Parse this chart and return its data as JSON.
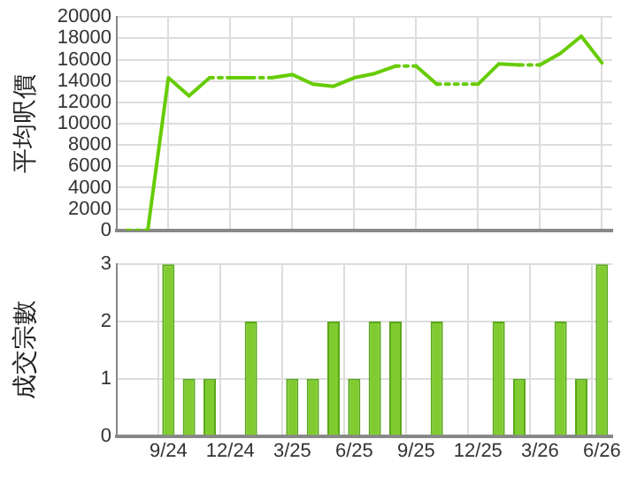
{
  "chart_data": [
    {
      "type": "line",
      "ylabel": "平均呎價",
      "categories": [
        null,
        null,
        null,
        null,
        null,
        null,
        null,
        null,
        null,
        null,
        null,
        null,
        null,
        null,
        null,
        null,
        null,
        null,
        null,
        null,
        null,
        null,
        null,
        null
      ],
      "series": [
        {
          "color": "#66cc00",
          "values": [
            0,
            0,
            14300,
            12600,
            14300,
            14300,
            14300,
            14300,
            14600,
            13700,
            13500,
            14300,
            14700,
            15400,
            15400,
            13700,
            13700,
            13700,
            15600,
            15500,
            15500,
            16600,
            18200,
            15700
          ]
        }
      ],
      "ylim": [
        0,
        20000
      ],
      "yticks": [
        0,
        2000,
        4000,
        6000,
        8000,
        10000,
        12000,
        14000,
        16000,
        18000,
        20000
      ],
      "grid": true,
      "marker": "none",
      "line_style": "solid",
      "tick_labels": "y"
    },
    {
      "type": "bar",
      "ylabel": "成交宗數",
      "categories": [
        null,
        null,
        "9/24",
        null,
        null,
        "12/24",
        null,
        null,
        "3/25",
        null,
        null,
        "6/25",
        null,
        null,
        "9/25",
        null,
        null,
        "12/25",
        null,
        null,
        "3/26",
        null,
        null,
        "6/26"
      ],
      "series": [
        {
          "color": "#80cc30",
          "values": [
            0,
            0,
            3,
            1,
            1,
            0,
            2,
            0,
            1,
            1,
            2,
            1,
            2,
            2,
            0,
            2,
            0,
            0,
            2,
            1,
            0,
            2,
            1,
            3
          ]
        }
      ],
      "ylim": [
        0,
        3
      ],
      "yticks": [
        0,
        1,
        2,
        3
      ],
      "grid": true
    }
  ]
}
